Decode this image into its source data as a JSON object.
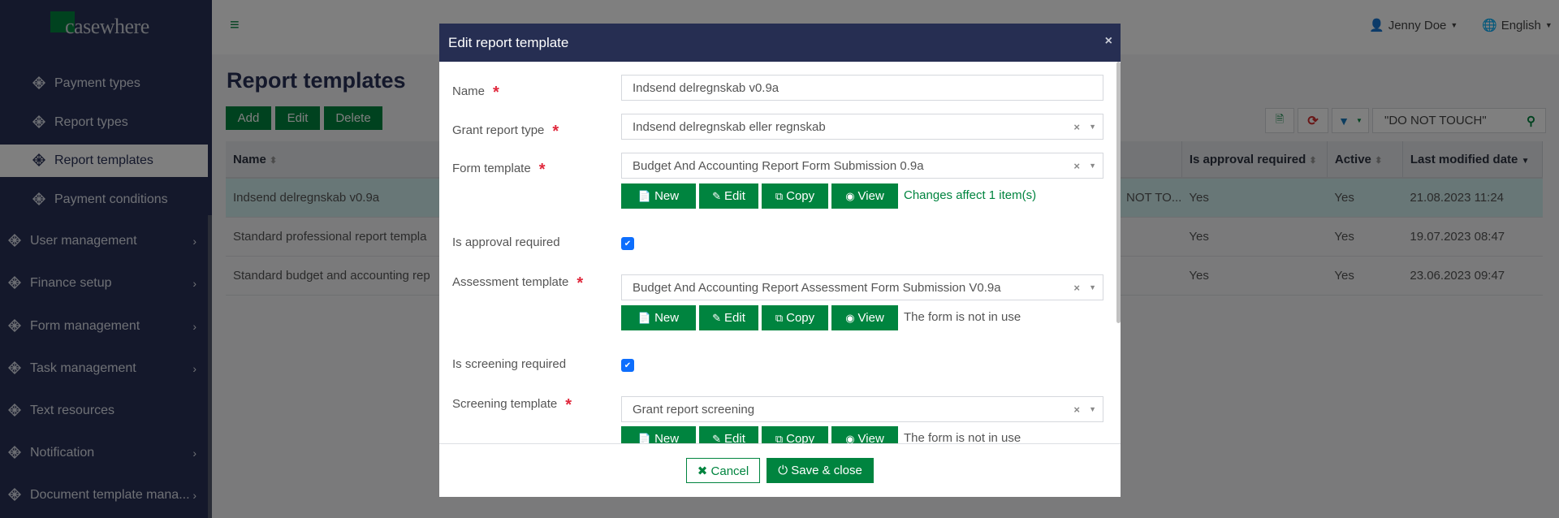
{
  "app": {
    "logo": "casewhere",
    "user": "Jenny Doe",
    "language": "English"
  },
  "sidebar": {
    "items": [
      {
        "label": "Payment types",
        "level": "sub"
      },
      {
        "label": "Report types",
        "level": "sub"
      },
      {
        "label": "Report templates",
        "level": "sub",
        "active": true
      },
      {
        "label": "Payment conditions",
        "level": "sub"
      },
      {
        "label": "User management",
        "level": "top",
        "chevron": true
      },
      {
        "label": "Finance setup",
        "level": "top",
        "chevron": true
      },
      {
        "label": "Form management",
        "level": "top",
        "chevron": true
      },
      {
        "label": "Task management",
        "level": "top",
        "chevron": true
      },
      {
        "label": "Text resources",
        "level": "top",
        "chevron": false
      },
      {
        "label": "Notification",
        "level": "top",
        "chevron": true
      },
      {
        "label": "Document template mana...",
        "level": "top",
        "chevron": true
      }
    ]
  },
  "page": {
    "title": "Report templates",
    "add": "Add",
    "edit": "Edit",
    "delete": "Delete",
    "search_value": "\"DO NOT TOUCH\""
  },
  "table": {
    "headers": {
      "name": "Name",
      "approval": "Is approval required",
      "active": "Active",
      "modified": "Last modified date"
    },
    "rows": [
      {
        "name": "Indsend delregnskab v0.9a",
        "hidden": "NOT TO...",
        "approval": "Yes",
        "active": "Yes",
        "modified": "21.08.2023 11:24"
      },
      {
        "name": "Standard professional report templa",
        "hidden": "",
        "approval": "Yes",
        "active": "Yes",
        "modified": "19.07.2023 08:47"
      },
      {
        "name": "Standard budget and accounting rep",
        "hidden": "",
        "approval": "Yes",
        "active": "Yes",
        "modified": "23.06.2023 09:47"
      }
    ]
  },
  "modal": {
    "title": "Edit report template",
    "close": "×",
    "name_label": "Name",
    "name_value": "Indsend delregnskab v0.9a",
    "grant_label": "Grant report type",
    "grant_value": "Indsend delregnskab eller regnskab",
    "form_label": "Form template",
    "form_value": "Budget And Accounting Report Form Submission 0.9a",
    "form_note": "Changes affect 1 item(s)",
    "approval_label": "Is approval required",
    "approval_checked": true,
    "assessment_label": "Assessment template",
    "assessment_value": "Budget And Accounting Report Assessment Form Submission V0.9a",
    "assessment_note": "The form is not in use",
    "screening_req_label": "Is screening required",
    "screening_checked": true,
    "screening_label": "Screening template",
    "screening_value": "Grant report screening",
    "screening_note": "The form is not in use",
    "btn_new": "New",
    "btn_edit": "Edit",
    "btn_copy": "Copy",
    "btn_view": "View",
    "cancel": "Cancel",
    "save": "Save & close"
  },
  "colors": {
    "brand_green": "#00843f",
    "navy": "#262e52",
    "required": "#e0283c",
    "checkbox": "#0d6efd"
  }
}
